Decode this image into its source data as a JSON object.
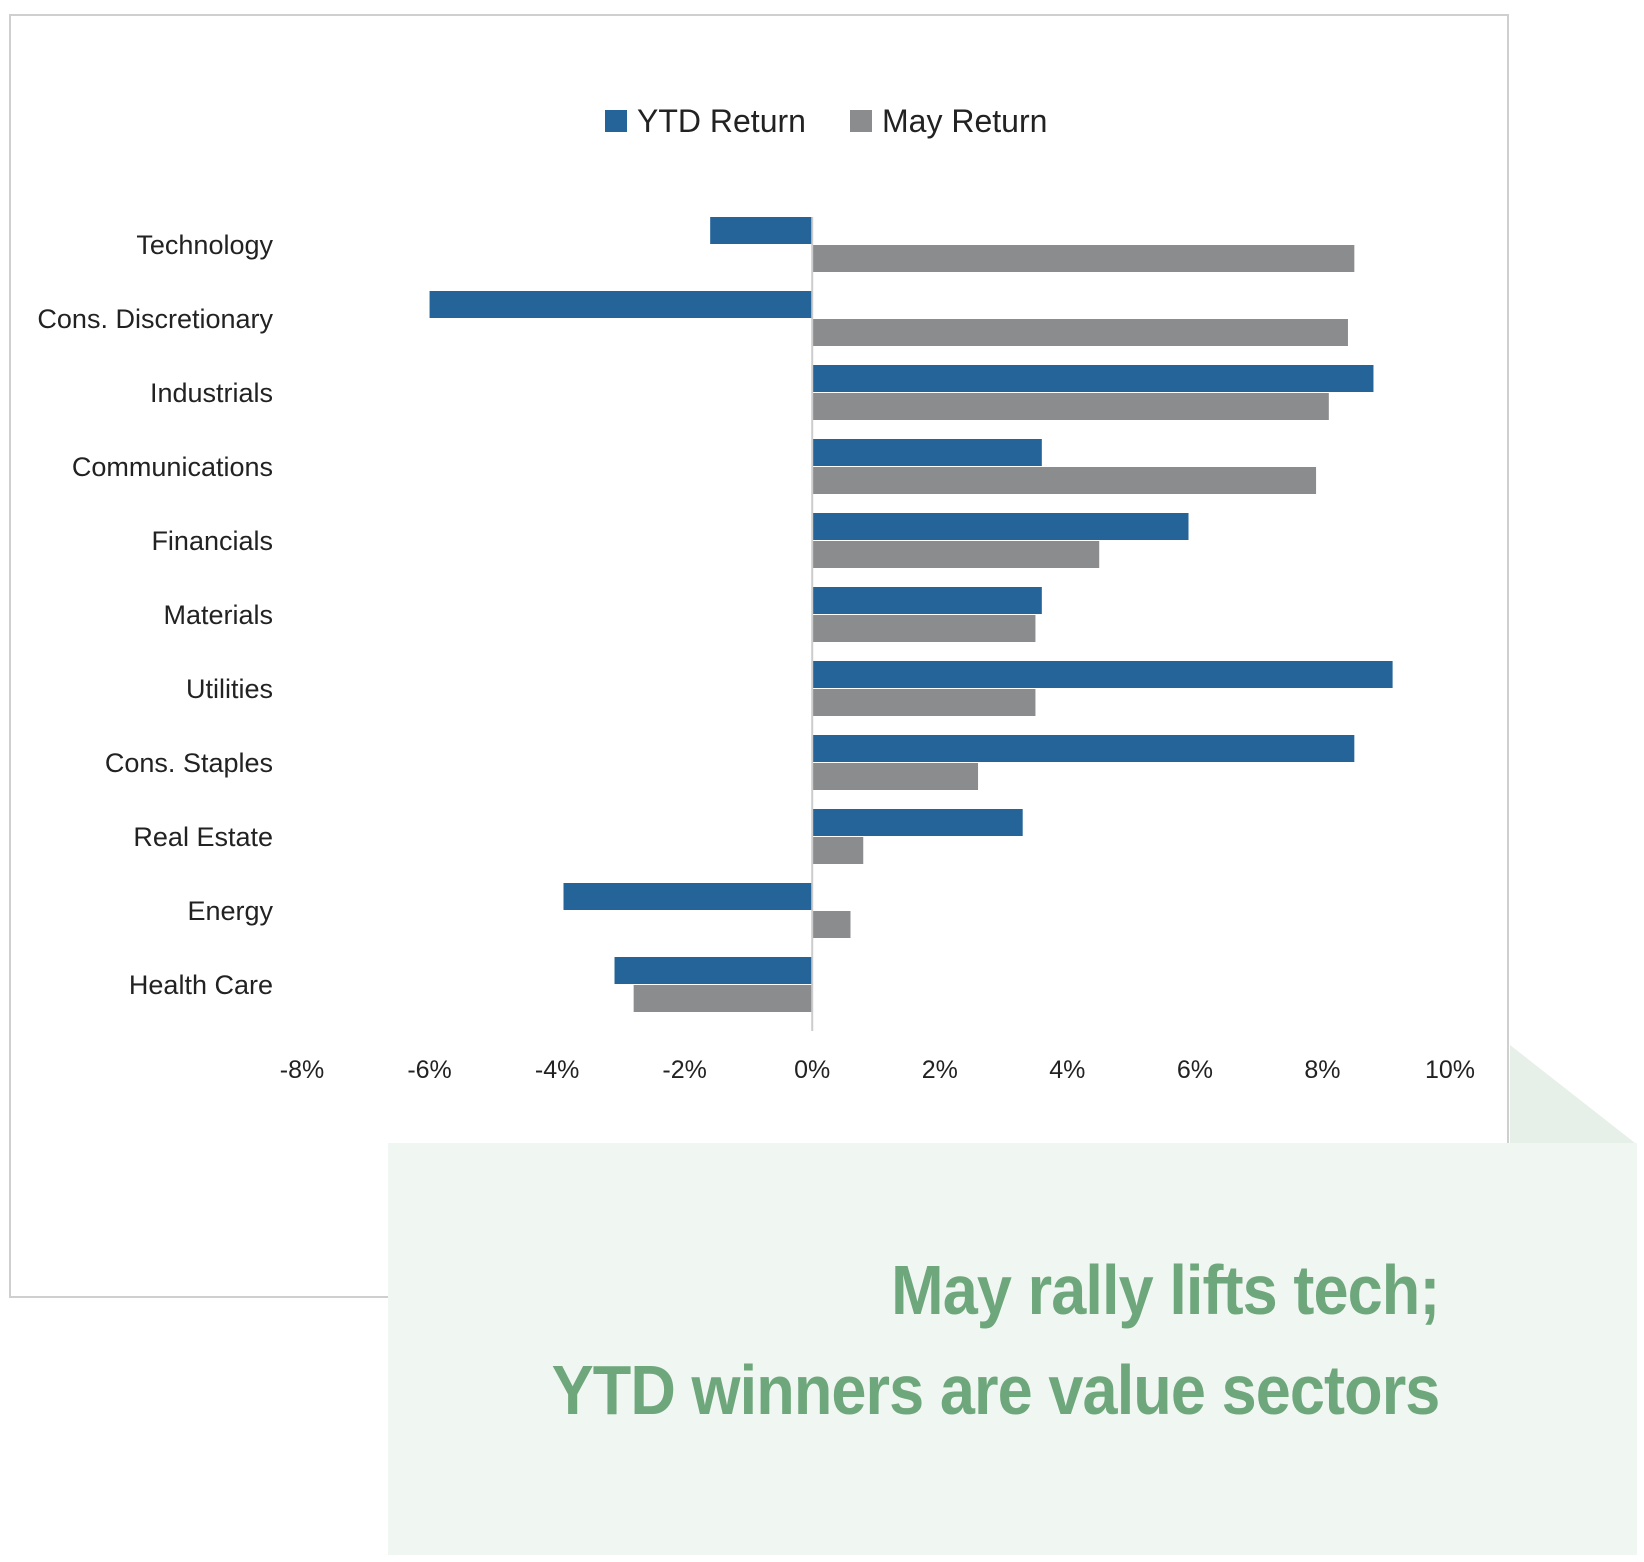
{
  "chart_data": {
    "type": "bar",
    "orientation": "horizontal",
    "categories": [
      "Technology",
      "Cons. Discretionary",
      "Industrials",
      "Communications",
      "Financials",
      "Materials",
      "Utilities",
      "Cons. Staples",
      "Real Estate",
      "Energy",
      "Health Care"
    ],
    "series": [
      {
        "name": "YTD Return",
        "color": "#256499",
        "values": [
          -1.6,
          -6.0,
          8.8,
          3.6,
          5.9,
          3.6,
          9.1,
          8.5,
          3.3,
          -3.9,
          -3.1
        ]
      },
      {
        "name": "May Return",
        "color": "#8b8c8e",
        "values": [
          8.5,
          8.4,
          8.1,
          7.9,
          4.5,
          3.5,
          3.5,
          2.6,
          0.8,
          0.6,
          -2.8
        ]
      }
    ],
    "xlim": [
      -8,
      10
    ],
    "xticks": [
      "-8%",
      "-6%",
      "-4%",
      "-2%",
      "0%",
      "2%",
      "4%",
      "6%",
      "8%",
      "10%"
    ],
    "legend_position": "top-center",
    "grid": false
  },
  "callout": {
    "line1": "May rally lifts tech;",
    "line2": "YTD winners are value sectors",
    "text_color": "#6ea77b",
    "background": "#f0f6f1"
  }
}
